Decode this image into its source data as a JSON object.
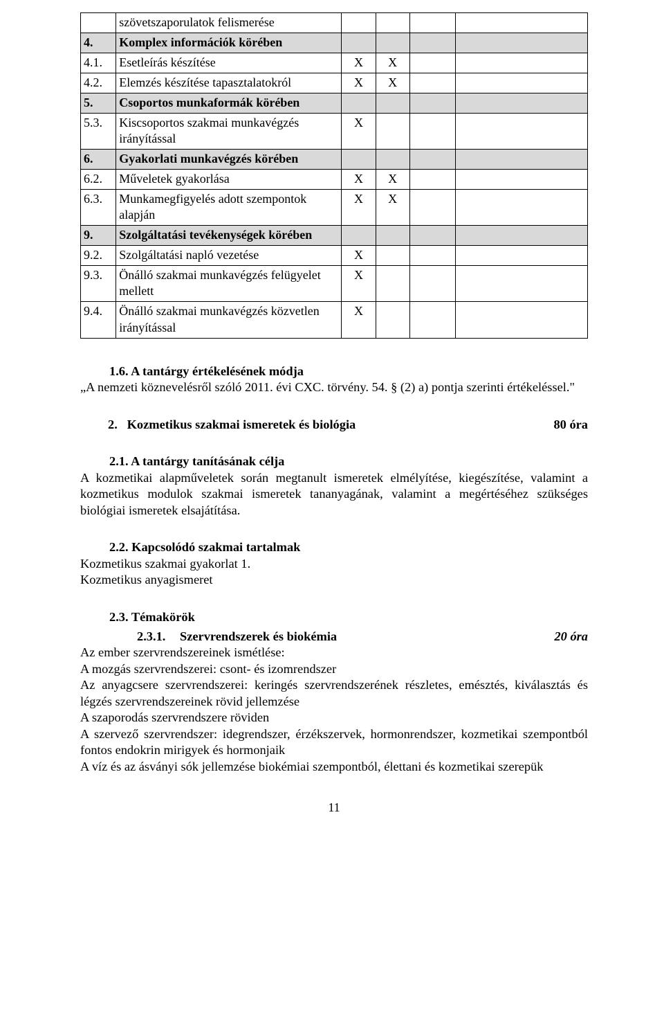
{
  "table": {
    "rows": [
      {
        "num": "",
        "desc": "szövetszaporulatok felismerése",
        "c1": "",
        "c2": "",
        "shade": false
      },
      {
        "num": "4.",
        "desc": "Komplex információk körében",
        "c1": "",
        "c2": "",
        "shade": true
      },
      {
        "num": "4.1.",
        "desc": "Esetleírás készítése",
        "c1": "X",
        "c2": "X",
        "shade": false
      },
      {
        "num": "4.2.",
        "desc": "Elemzés készítése tapasztalatokról",
        "c1": "X",
        "c2": "X",
        "shade": false
      },
      {
        "num": "5.",
        "desc": "Csoportos munkaformák körében",
        "c1": "",
        "c2": "",
        "shade": true
      },
      {
        "num": "5.3.",
        "desc": "Kiscsoportos szakmai munkavégzés irányítással",
        "c1": "X",
        "c2": "",
        "shade": false
      },
      {
        "num": "6.",
        "desc": "Gyakorlati munkavégzés körében",
        "c1": "",
        "c2": "",
        "shade": true
      },
      {
        "num": "6.2.",
        "desc": "Műveletek gyakorlása",
        "c1": "X",
        "c2": "X",
        "shade": false
      },
      {
        "num": "6.3.",
        "desc": "Munkamegfigyelés adott szempontok alapján",
        "c1": "X",
        "c2": "X",
        "shade": false
      },
      {
        "num": "9.",
        "desc": "Szolgáltatási tevékenységek körében",
        "c1": "",
        "c2": "",
        "shade": true
      },
      {
        "num": "9.2.",
        "desc": "Szolgáltatási napló vezetése",
        "c1": "X",
        "c2": "",
        "shade": false
      },
      {
        "num": "9.3.",
        "desc": "Önálló szakmai munkavégzés felügyelet mellett",
        "c1": "X",
        "c2": "",
        "shade": false
      },
      {
        "num": "9.4.",
        "desc": "Önálló szakmai munkavégzés közvetlen irányítással",
        "c1": "X",
        "c2": "",
        "shade": false
      }
    ]
  },
  "eval": {
    "heading": "1.6.   A tantárgy értékelésének módja",
    "body": "„A nemzeti köznevelésről szóló 2011. évi CXC. törvény. 54. § (2) a) pontja szerinti értékeléssel.\""
  },
  "sect2": {
    "num": "2.",
    "title": "Kozmetikus szakmai ismeretek és biológia",
    "hours": "80 óra"
  },
  "s21": {
    "heading": "2.1.   A tantárgy tanításának célja",
    "body": "A kozmetikai alapműveletek során megtanult ismeretek elmélyítése, kiegészítése, valamint a kozmetikus modulok szakmai ismeretek tananyagának, valamint a megértéséhez szükséges biológiai ismeretek elsajátítása."
  },
  "s22": {
    "heading": "2.2.   Kapcsolódó szakmai tartalmak",
    "line1": "Kozmetikus szakmai gyakorlat 1.",
    "line2": "Kozmetikus anyagismeret"
  },
  "s23": {
    "heading": "2.3.   Témakörök",
    "themaNum": "2.3.1.",
    "themaTitle": "Szervrendszerek és biokémia",
    "themaHours": "20 óra",
    "lines": [
      "Az ember szervrendszereinek ismétlése:",
      "A mozgás szervrendszerei: csont- és izomrendszer",
      "Az anyagcsere szervrendszerei: keringés szervrendszerének részletes, emésztés, kiválasztás és légzés szervrendszereinek rövid jellemzése",
      "A szaporodás szervrendszere röviden",
      "A szervező szervrendszer: idegrendszer, érzékszervek, hormonrendszer, kozmetikai szempontból fontos endokrin mirigyek és hormonjaik",
      "A víz és az ásványi sók jellemzése biokémiai szempontból, élettani és kozmetikai szerepük"
    ]
  },
  "pageNumber": "11"
}
